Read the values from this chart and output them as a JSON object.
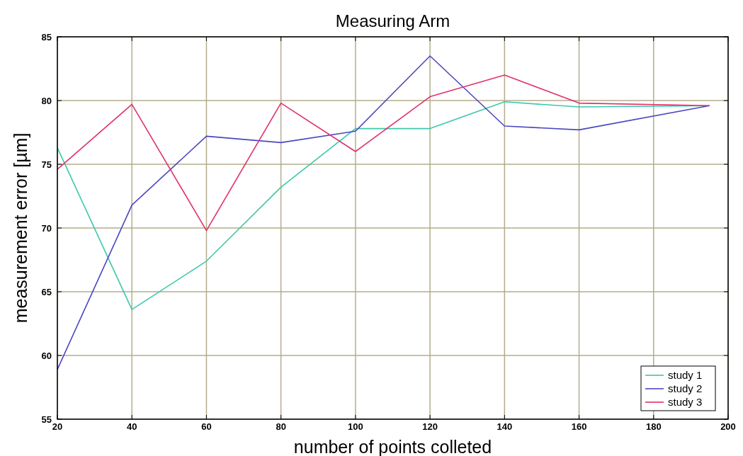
{
  "chart_data": {
    "type": "line",
    "title": "Measuring Arm",
    "xlabel": "number of points colleted",
    "ylabel": "measurement error [µm]",
    "x": [
      20,
      40,
      60,
      80,
      100,
      120,
      140,
      160,
      195
    ],
    "series": [
      {
        "name": "study 1",
        "color": "#3cc8aa",
        "values": [
          76.3,
          63.6,
          67.4,
          73.2,
          77.8,
          77.8,
          79.9,
          79.5,
          79.6
        ]
      },
      {
        "name": "study 2",
        "color": "#4b48c0",
        "values": [
          58.9,
          71.8,
          77.2,
          76.7,
          77.6,
          83.5,
          78.0,
          77.7,
          79.6
        ]
      },
      {
        "name": "study 3",
        "color": "#e0306f",
        "values": [
          74.6,
          79.7,
          69.8,
          79.8,
          76.0,
          80.3,
          82.0,
          79.8,
          79.6
        ]
      }
    ],
    "xlim": [
      20,
      200
    ],
    "xticks": [
      20,
      40,
      60,
      80,
      100,
      120,
      140,
      160,
      180,
      200
    ],
    "ylim": [
      55,
      85
    ],
    "yticks": [
      55,
      60,
      65,
      70,
      75,
      80,
      85
    ],
    "grid": true,
    "legend": "bottom right",
    "marker": "none",
    "line_style": "solid"
  }
}
